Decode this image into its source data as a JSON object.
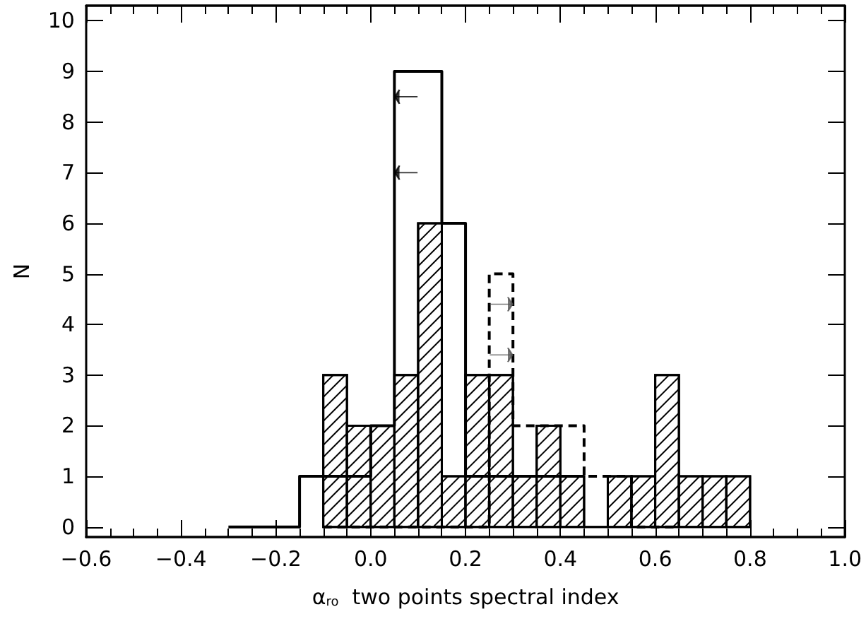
{
  "chart_data": {
    "type": "histogram",
    "xlabel": "α$_{ro}$  two points spectral index",
    "ylabel": "N",
    "xlim": [
      -0.6,
      1.0
    ],
    "xticks": [
      {
        "value": -0.6,
        "label": "−0.6"
      },
      {
        "value": -0.4,
        "label": "−0.4"
      },
      {
        "value": -0.2,
        "label": "−0.2"
      },
      {
        "value": 0,
        "label": "0.0"
      },
      {
        "value": 0.2,
        "label": "0.2"
      },
      {
        "value": 0.4,
        "label": "0.4"
      },
      {
        "value": 0.6,
        "label": "0.6"
      },
      {
        "value": 0.8,
        "label": "0.8"
      },
      {
        "value": 1,
        "label": "1.0"
      }
    ],
    "ylim": [
      -0.2,
      10.3
    ],
    "yticks": [
      0,
      1,
      2,
      3,
      4,
      5,
      6,
      7,
      8,
      9,
      10
    ],
    "grid": false,
    "series": [
      {
        "color": "#000000",
        "bins": [
          -0.1,
          -0.05,
          0.0,
          0.05,
          0.1,
          0.15,
          0.2,
          0.25,
          0.3,
          0.35,
          0.4,
          0.45,
          0.5,
          0.55,
          0.6,
          0.65,
          0.7,
          0.75,
          0.8
        ],
        "values": [
          3,
          2,
          2,
          3,
          6,
          1,
          3,
          3,
          1,
          2,
          1,
          0,
          1,
          1,
          3,
          1,
          1,
          1
        ]
      },
      {
        "type": "step",
        "color": "#000000",
        "line_style": "solid",
        "x": [
          -0.3,
          -0.15,
          0.0,
          0.05,
          0.15,
          0.2,
          0.45
        ],
        "values": [
          0,
          1,
          2,
          9,
          6,
          1,
          1
        ]
      },
      {
        "type": "step",
        "color": "#000000",
        "line_style": "dashed",
        "x": [
          -0.1,
          0.25,
          0.3,
          0.45,
          0.55,
          0.65
        ],
        "values": [
          0,
          5,
          2,
          1,
          0,
          0
        ]
      },
      {
        "type": "scatter",
        "color": "#000000",
        "x": [
          0.075,
          0.075
        ],
        "values": [
          8.5,
          7
        ]
      },
      {
        "type": "scatter",
        "color": "#555555",
        "x": [
          0.275,
          0.275
        ],
        "values": [
          4.4,
          3.4
        ]
      }
    ]
  }
}
